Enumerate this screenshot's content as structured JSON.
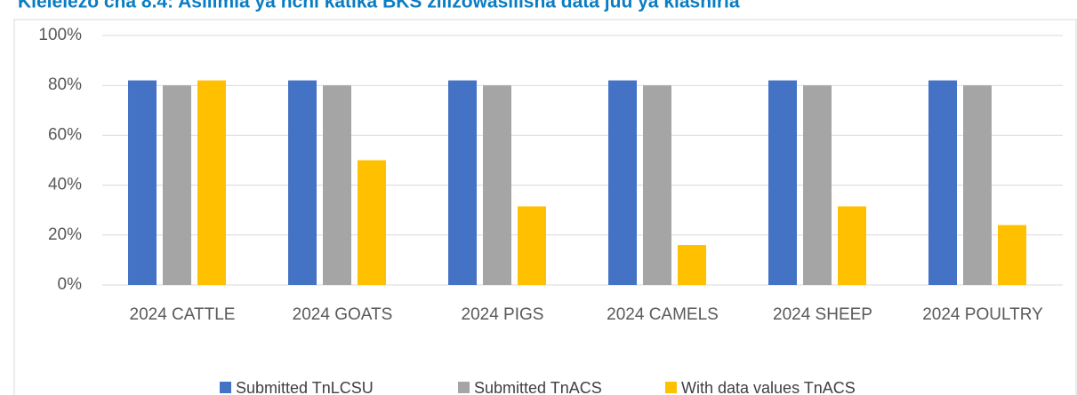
{
  "chart_data": {
    "type": "bar",
    "title": "Kielelezo cha 8.4: Asilimia ya nchi katika BKS zilizowasilisha data juu ya kiashiria",
    "categories": [
      "2024 CATTLE",
      "2024 GOATS",
      "2024 PIGS",
      "2024 CAMELS",
      "2024 SHEEP",
      "2024 POULTRY"
    ],
    "series": [
      {
        "name": "Submitted TnLCSU",
        "color": "#4472c4",
        "values": [
          82,
          82,
          82,
          82,
          82,
          82
        ]
      },
      {
        "name": "Submitted TnACS",
        "color": "#a5a5a5",
        "values": [
          80,
          80,
          80,
          80,
          80,
          80
        ]
      },
      {
        "name": "With data values TnACS",
        "color": "#ffc000",
        "values": [
          82,
          50,
          31.5,
          16,
          31.5,
          24
        ]
      }
    ],
    "ylim": [
      0,
      100
    ],
    "yticks": [
      {
        "value": 0,
        "label": "0%"
      },
      {
        "value": 20,
        "label": "20%"
      },
      {
        "value": 40,
        "label": "40%"
      },
      {
        "value": 60,
        "label": "60%"
      },
      {
        "value": 80,
        "label": "80%"
      },
      {
        "value": 100,
        "label": "100%"
      }
    ],
    "grid": true,
    "legend": "bottom"
  }
}
